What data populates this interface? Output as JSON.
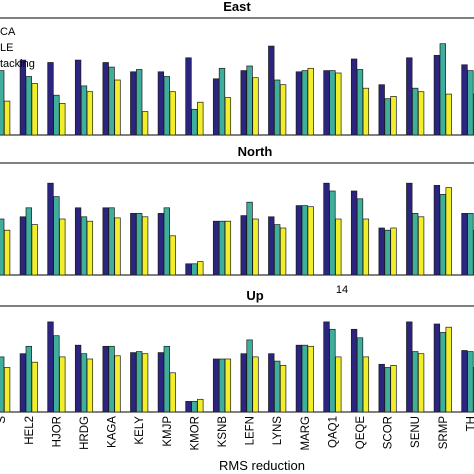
{
  "figure": {
    "xlabel": "RMS reduction",
    "note": "14"
  },
  "colors": {
    "series_a": "#2b2580",
    "series_b": "#3fae9c",
    "series_c": "#f2ef2a",
    "edge": "#1a1a1a"
  },
  "legend": {
    "labels": [
      "CA",
      "LE",
      "tacking"
    ]
  },
  "chart_data": [
    {
      "type": "bar",
      "title": "East",
      "categories": [
        "S",
        "HEL2",
        "HJOR",
        "HRDG",
        "KAGA",
        "KELY",
        "KMJP",
        "KMOR",
        "KSNB",
        "LEFN",
        "LYNS",
        "MARG",
        "QAQ1",
        "QEQE",
        "SCOR",
        "SENU",
        "SRMP",
        "TH"
      ],
      "ylim": [
        0,
        1
      ],
      "series": [
        {
          "values": [
            0.56,
            0.64,
            0.62,
            0.64,
            0.62,
            0.54,
            0.54,
            0.66,
            0.48,
            0.55,
            0.76,
            0.54,
            0.55,
            0.65,
            0.43,
            0.66,
            0.68,
            0.6
          ]
        },
        {
          "values": [
            0.55,
            0.5,
            0.34,
            0.42,
            0.58,
            0.56,
            0.5,
            0.22,
            0.57,
            0.59,
            0.47,
            0.55,
            0.55,
            0.56,
            0.31,
            0.4,
            0.78,
            0.55
          ]
        },
        {
          "values": [
            0.29,
            0.44,
            0.27,
            0.37,
            0.47,
            0.2,
            0.37,
            0.28,
            0.32,
            0.49,
            0.43,
            0.57,
            0.53,
            0.4,
            0.33,
            0.37,
            0.35,
            0.35
          ]
        }
      ]
    },
    {
      "type": "bar",
      "title": "North",
      "categories": [
        "S",
        "HEL2",
        "HJOR",
        "HRDG",
        "KAGA",
        "KELY",
        "KMJP",
        "KMOR",
        "KSNB",
        "LEFN",
        "LYNS",
        "MARG",
        "QAQ1",
        "QEQE",
        "SCOR",
        "SENU",
        "SRMP",
        "TH"
      ],
      "ylim": [
        0,
        1
      ],
      "series": [
        {
          "values": [
            0.52,
            0.52,
            0.82,
            0.6,
            0.6,
            0.55,
            0.55,
            0.1,
            0.48,
            0.53,
            0.52,
            0.62,
            0.82,
            0.75,
            0.42,
            0.82,
            0.8,
            0.55
          ]
        },
        {
          "values": [
            0.5,
            0.6,
            0.7,
            0.52,
            0.6,
            0.55,
            0.6,
            0.1,
            0.48,
            0.65,
            0.45,
            0.62,
            0.75,
            0.68,
            0.4,
            0.55,
            0.72,
            0.55
          ]
        },
        {
          "values": [
            0.4,
            0.45,
            0.5,
            0.48,
            0.51,
            0.52,
            0.35,
            0.12,
            0.48,
            0.5,
            0.42,
            0.61,
            0.5,
            0.5,
            0.42,
            0.52,
            0.78,
            0.4
          ]
        }
      ]
    },
    {
      "type": "bar",
      "title": "Up",
      "categories": [
        "S",
        "HEL2",
        "HJOR",
        "HRDG",
        "KAGA",
        "KELY",
        "KMJP",
        "KMOR",
        "KSNB",
        "LEFN",
        "LYNS",
        "MARG",
        "QAQ1",
        "QEQE",
        "SCOR",
        "SENU",
        "SRMP",
        "TH"
      ],
      "ylim": [
        0,
        1
      ],
      "series": [
        {
          "values": [
            0.55,
            0.55,
            0.85,
            0.63,
            0.62,
            0.56,
            0.56,
            0.1,
            0.5,
            0.55,
            0.55,
            0.63,
            0.85,
            0.78,
            0.45,
            0.85,
            0.83,
            0.58
          ]
        },
        {
          "values": [
            0.52,
            0.62,
            0.72,
            0.55,
            0.62,
            0.57,
            0.62,
            0.1,
            0.5,
            0.68,
            0.48,
            0.63,
            0.78,
            0.7,
            0.42,
            0.57,
            0.75,
            0.57
          ]
        },
        {
          "values": [
            0.42,
            0.47,
            0.52,
            0.5,
            0.53,
            0.55,
            0.37,
            0.12,
            0.5,
            0.52,
            0.44,
            0.62,
            0.52,
            0.52,
            0.44,
            0.55,
            0.8,
            0.42
          ]
        }
      ]
    }
  ]
}
